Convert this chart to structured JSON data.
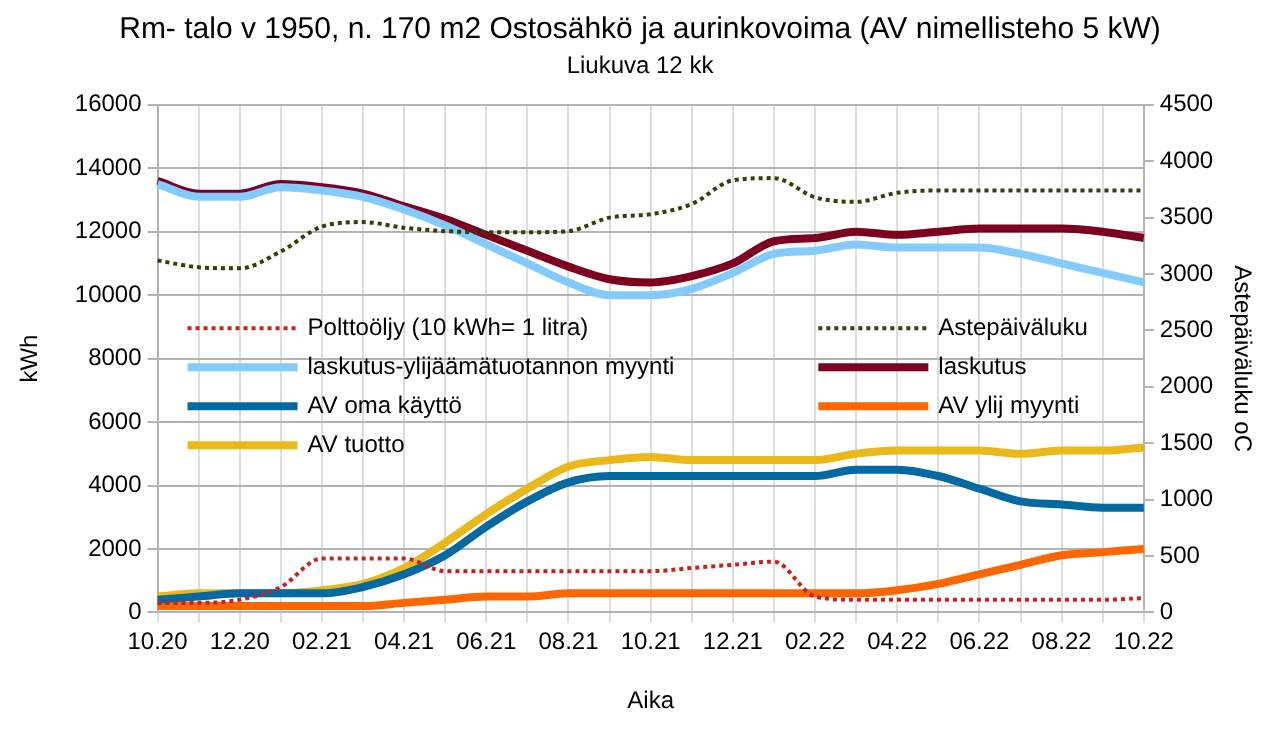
{
  "chart_data": {
    "type": "line",
    "title": "Rm- talo v 1950, n. 170 m2 Ostosähkö ja aurinkovoima (AV nimellisteho 5 kW)",
    "subtitle": "Liukuva 12 kk",
    "xlabel": "Aika",
    "ylabel": "kWh",
    "y2label": "Astepäiväluku oC",
    "categories": [
      "10.20",
      null,
      "12.20",
      null,
      "02.21",
      null,
      "04.21",
      null,
      "06.21",
      null,
      "08.21",
      null,
      "10.21",
      null,
      "12.21",
      null,
      "02.22",
      null,
      "04.22",
      null,
      "06.22",
      null,
      "08.22",
      null,
      "10.22"
    ],
    "ylim": [
      0,
      16000
    ],
    "yticks": [
      0,
      2000,
      4000,
      6000,
      8000,
      10000,
      12000,
      14000,
      16000
    ],
    "y2lim": [
      0,
      4500
    ],
    "y2ticks": [
      0,
      500,
      1000,
      1500,
      2000,
      2500,
      3000,
      3500,
      4000,
      4500
    ],
    "grid": true,
    "legend": "center",
    "marker": "none",
    "series": [
      {
        "name": "Polttoöljy (10 kWh= 1 litra)",
        "color": "#c9211e",
        "line_style": "dotted",
        "values": [
          300,
          300,
          400,
          800,
          1700,
          1700,
          1700,
          1300,
          1300,
          1300,
          1300,
          1300,
          1300,
          1400,
          1500,
          1600,
          500,
          400,
          400,
          400,
          400,
          400,
          400,
          400,
          450
        ]
      },
      {
        "name": "Astepäiväluku",
        "color": "#314004",
        "line_style": "dotted",
        "axis": "y2",
        "values": [
          3120,
          3060,
          3050,
          3200,
          3420,
          3460,
          3410,
          3380,
          3370,
          3370,
          3380,
          3500,
          3530,
          3620,
          3830,
          3850,
          3680,
          3640,
          3720,
          3740,
          3740,
          3740,
          3740,
          3740,
          3740
        ]
      },
      {
        "name": "laskutus-ylijäämätuotannon myynti",
        "color": "#83caff",
        "line_style": "solid",
        "values": [
          13500,
          13100,
          13100,
          13400,
          13300,
          13100,
          12700,
          12200,
          11600,
          11000,
          10400,
          10000,
          10000,
          10200,
          10700,
          11300,
          11400,
          11600,
          11500,
          11500,
          11500,
          11300,
          11000,
          10700,
          10400
        ]
      },
      {
        "name": "laskutus",
        "color": "#7e0021",
        "line_style": "solid",
        "values": [
          13600,
          13200,
          13200,
          13500,
          13400,
          13200,
          12800,
          12400,
          11900,
          11400,
          10900,
          10500,
          10400,
          10600,
          11000,
          11700,
          11800,
          12000,
          11900,
          12000,
          12100,
          12100,
          12100,
          12000,
          11800
        ]
      },
      {
        "name": "AV oma käyttö",
        "color": "#0369a3",
        "line_style": "solid",
        "values": [
          400,
          500,
          600,
          600,
          600,
          800,
          1200,
          1800,
          2700,
          3500,
          4100,
          4300,
          4300,
          4300,
          4300,
          4300,
          4300,
          4500,
          4500,
          4300,
          3900,
          3500,
          3400,
          3300,
          3300
        ]
      },
      {
        "name": "AV ylij myynti",
        "color": "#ff6600",
        "line_style": "solid",
        "values": [
          200,
          200,
          200,
          200,
          200,
          200,
          300,
          400,
          500,
          500,
          600,
          600,
          600,
          600,
          600,
          600,
          600,
          600,
          700,
          900,
          1200,
          1500,
          1800,
          1900,
          2000
        ]
      },
      {
        "name": "AV tuotto",
        "color": "#eab818",
        "line_style": "solid",
        "values": [
          500,
          600,
          600,
          600,
          700,
          900,
          1400,
          2200,
          3100,
          3900,
          4600,
          4800,
          4900,
          4800,
          4800,
          4800,
          4800,
          5000,
          5100,
          5100,
          5100,
          5000,
          5100,
          5100,
          5200
        ]
      }
    ]
  }
}
